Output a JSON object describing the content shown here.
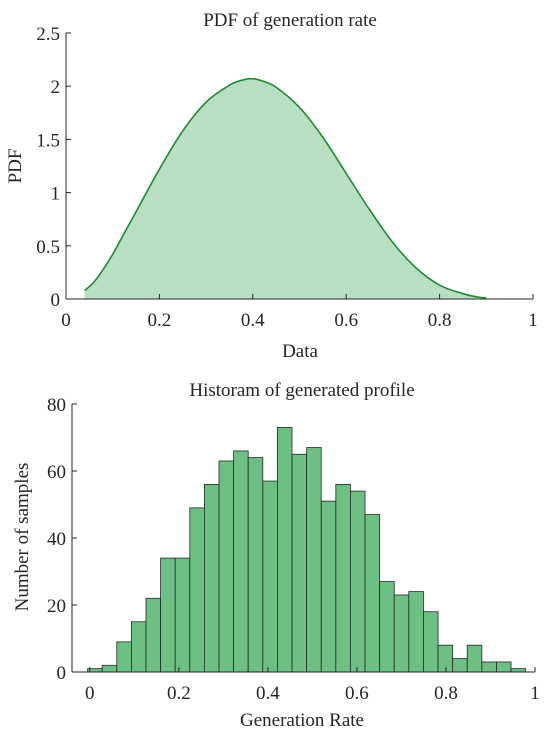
{
  "colors": {
    "pdf_fill": "#b9dfc3",
    "pdf_line": "#1e8a32",
    "bar_fill": "#6dbf84",
    "bar_edge": "#1f2d22",
    "axis": "#262626"
  },
  "chart_data": [
    {
      "type": "area",
      "title": "PDF of generation rate",
      "xlabel": "Data",
      "ylabel": "PDF",
      "xlim": [
        0,
        1
      ],
      "ylim": [
        0,
        2.5
      ],
      "xticks": [
        0,
        0.2,
        0.4,
        0.6,
        0.8,
        1
      ],
      "xtick_labels": [
        "0",
        "0.2",
        "0.4",
        "0.6",
        "0.8",
        "1"
      ],
      "yticks": [
        0,
        0.5,
        1,
        1.5,
        2,
        2.5
      ],
      "ytick_labels": [
        "0",
        "0.5",
        "1",
        "1.5",
        "2",
        "2.5"
      ],
      "grid": false,
      "x": [
        0.04,
        0.06,
        0.08,
        0.1,
        0.12,
        0.15,
        0.2,
        0.25,
        0.3,
        0.35,
        0.38,
        0.4,
        0.42,
        0.45,
        0.5,
        0.55,
        0.6,
        0.65,
        0.7,
        0.75,
        0.8,
        0.85,
        0.88,
        0.9
      ],
      "y": [
        0.08,
        0.16,
        0.28,
        0.42,
        0.58,
        0.82,
        1.22,
        1.58,
        1.85,
        2.01,
        2.06,
        2.07,
        2.05,
        1.99,
        1.8,
        1.52,
        1.18,
        0.84,
        0.53,
        0.29,
        0.13,
        0.05,
        0.02,
        0.01
      ]
    },
    {
      "type": "bar",
      "title": "Historam of generated profile",
      "xlabel": "Generation Rate",
      "ylabel": "Number of samples",
      "xlim": [
        -0.04,
        1.0
      ],
      "ylim": [
        0,
        80
      ],
      "xticks": [
        0,
        0.2,
        0.4,
        0.6,
        0.8,
        1
      ],
      "xtick_labels": [
        "0",
        "0.2",
        "0.4",
        "0.6",
        "0.8",
        "1"
      ],
      "yticks": [
        0,
        20,
        40,
        60,
        80
      ],
      "ytick_labels": [
        "0",
        "20",
        "40",
        "60",
        "80"
      ],
      "grid": false,
      "bin_start": -0.005,
      "bin_width": 0.0328,
      "values": [
        1,
        2,
        9,
        15,
        22,
        34,
        34,
        49,
        56,
        63,
        66,
        64,
        57,
        73,
        65,
        67,
        51,
        56,
        54,
        47,
        27,
        23,
        24,
        18,
        8,
        4,
        8,
        3,
        3,
        1
      ]
    }
  ]
}
